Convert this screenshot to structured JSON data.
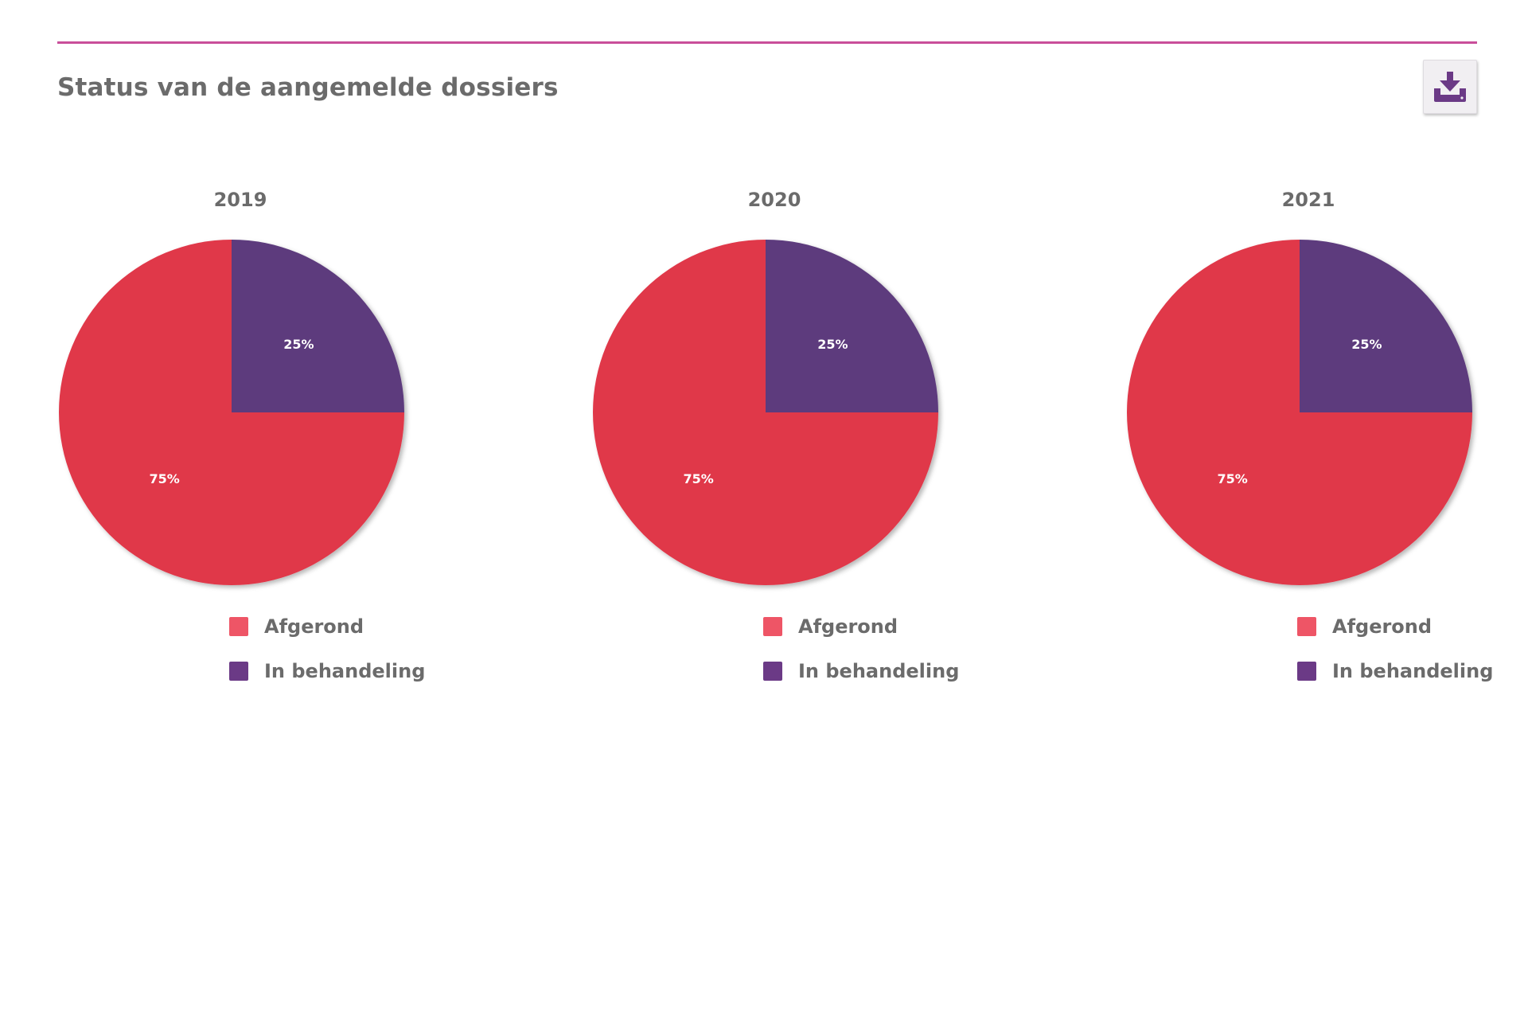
{
  "page": {
    "title": "Status van de aangemelde dossiers",
    "accent_color": "#c94f9a",
    "download_button": {
      "icon": "download-tray-icon",
      "icon_color": "#6b3a86"
    }
  },
  "legend_colors": {
    "Afgerond": "#ee5566",
    "In behandeling": "#6b3a86"
  },
  "chart_data": [
    {
      "type": "pie",
      "title": "2019",
      "labels": [
        "Afgerond",
        "In behandeling"
      ],
      "values": [
        75,
        25
      ],
      "value_labels": [
        "75%",
        "25%"
      ],
      "colors": [
        "#e0374a",
        "#5d3b7d"
      ],
      "legend_position": "bottom"
    },
    {
      "type": "pie",
      "title": "2020",
      "labels": [
        "Afgerond",
        "In behandeling"
      ],
      "values": [
        75,
        25
      ],
      "value_labels": [
        "75%",
        "25%"
      ],
      "colors": [
        "#e0374a",
        "#5d3b7d"
      ],
      "legend_position": "bottom"
    },
    {
      "type": "pie",
      "title": "2021",
      "labels": [
        "Afgerond",
        "In behandeling"
      ],
      "values": [
        75,
        25
      ],
      "value_labels": [
        "75%",
        "25%"
      ],
      "colors": [
        "#e0374a",
        "#5d3b7d"
      ],
      "legend_position": "bottom"
    }
  ]
}
